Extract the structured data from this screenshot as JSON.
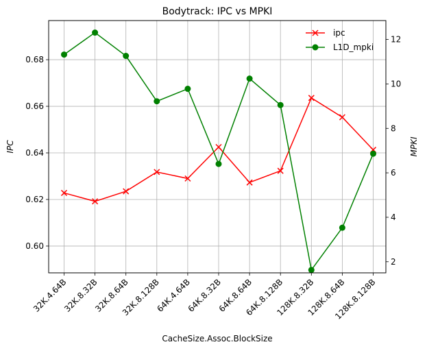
{
  "chart_data": {
    "type": "line",
    "title": "Bodytrack: IPC vs MPKI",
    "xlabel": "CacheSize.Assoc.BlockSize",
    "ylabel_left": "IPC",
    "ylabel_right": "MPKI",
    "categories": [
      "32K.4.64B",
      "32K.8.32B",
      "32K.8.64B",
      "32K.8.128B",
      "64K.4.64B",
      "64K.8.32B",
      "64K.8.64B",
      "64K.8.128B",
      "128K.8.32B",
      "128K.8.64B",
      "128K.8.128B"
    ],
    "ylim_left": [
      0.5885,
      0.6968
    ],
    "ylim_right": [
      1.5,
      12.85
    ],
    "yticks_left": [
      0.6,
      0.62,
      0.64,
      0.66,
      0.68
    ],
    "yticks_left_labels": [
      "0.60",
      "0.62",
      "0.64",
      "0.66",
      "0.68"
    ],
    "yticks_right": [
      2,
      4,
      6,
      8,
      10,
      12
    ],
    "yticks_right_labels": [
      "2",
      "4",
      "6",
      "8",
      "10",
      "12"
    ],
    "grid": true,
    "legend_position": "top-right",
    "series": [
      {
        "name": "ipc",
        "axis": "left",
        "color": "#ff0000",
        "marker": "x",
        "values": [
          0.6228,
          0.6192,
          0.6235,
          0.6318,
          0.629,
          0.6425,
          0.6273,
          0.6323,
          0.6636,
          0.6553,
          0.6413
        ]
      },
      {
        "name": "L1D_mpki",
        "axis": "right",
        "color": "#008000",
        "marker": "o",
        "values": [
          11.32,
          12.31,
          11.26,
          9.22,
          9.78,
          6.4,
          10.24,
          9.05,
          1.63,
          3.53,
          6.86
        ]
      }
    ]
  }
}
